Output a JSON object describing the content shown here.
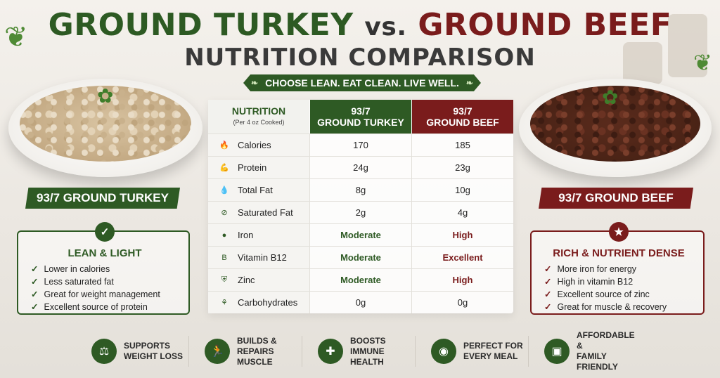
{
  "header": {
    "title_turkey": "GROUND TURKEY",
    "title_vs": "vs.",
    "title_beef": "GROUND BEEF",
    "subtitle": "NUTRITION COMPARISON",
    "tagline": "CHOOSE LEAN. EAT CLEAN. LIVE WELL."
  },
  "left": {
    "ribbon": "93/7 GROUND TURKEY",
    "benefit_title": "LEAN & LIGHT",
    "items": [
      "Lower in calories",
      "Less saturated fat",
      "Great for weight management",
      "Excellent source of protein"
    ]
  },
  "right": {
    "ribbon": "93/7 GROUND BEEF",
    "benefit_title": "RICH & NUTRIENT DENSE",
    "items": [
      "More iron for energy",
      "High in vitamin B12",
      "Excellent source of zinc",
      "Great for muscle & recovery"
    ]
  },
  "table": {
    "header_nutrition": "NUTRITION",
    "header_nutrition_sub": "(Per 4 oz Cooked)",
    "header_turkey_line1": "93/7",
    "header_turkey_line2": "GROUND TURKEY",
    "header_beef_line1": "93/7",
    "header_beef_line2": "GROUND BEEF",
    "rows": [
      {
        "name": "Calories",
        "icon": "flame-icon",
        "turkey": "170",
        "beef": "185"
      },
      {
        "name": "Protein",
        "icon": "muscle-icon",
        "turkey": "24g",
        "beef": "23g"
      },
      {
        "name": "Total Fat",
        "icon": "droplet-icon",
        "turkey": "8g",
        "beef": "10g"
      },
      {
        "name": "Saturated Fat",
        "icon": "no-fat-icon",
        "turkey": "2g",
        "beef": "4g"
      },
      {
        "name": "Iron",
        "icon": "iron-icon",
        "turkey": "Moderate",
        "beef": "High"
      },
      {
        "name": "Vitamin B12",
        "icon": "b12-icon",
        "turkey": "Moderate",
        "beef": "Excellent"
      },
      {
        "name": "Zinc",
        "icon": "shield-icon",
        "turkey": "Moderate",
        "beef": "High"
      },
      {
        "name": "Carbohydrates",
        "icon": "wheat-icon",
        "turkey": "0g",
        "beef": "0g"
      }
    ]
  },
  "features": [
    {
      "label": "SUPPORTS\nWEIGHT LOSS",
      "icon": "scale-icon"
    },
    {
      "label": "BUILDS & REPAIRS\nMUSCLE",
      "icon": "runner-icon"
    },
    {
      "label": "BOOSTS IMMUNE\nHEALTH",
      "icon": "shield-plus-icon"
    },
    {
      "label": "PERFECT FOR\nEVERY MEAL",
      "icon": "plate-icon"
    },
    {
      "label": "AFFORDABLE &\nFAMILY FRIENDLY",
      "icon": "wallet-icon"
    }
  ],
  "colors": {
    "turkey_green": "#2e5a24",
    "beef_red": "#7a1c1c"
  }
}
